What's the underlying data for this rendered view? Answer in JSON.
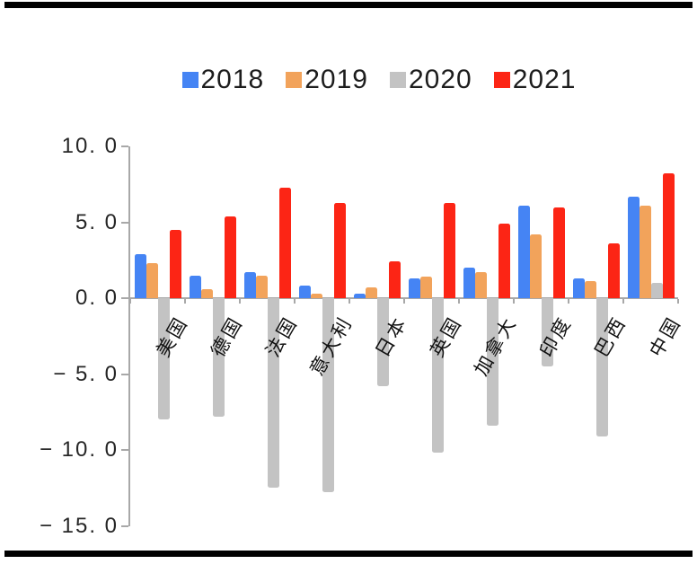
{
  "decor": {
    "border_color": "#000000",
    "background_color": "#ffffff",
    "axis_color": "#a8a8a8",
    "text_color": "#262626"
  },
  "legend": {
    "items": [
      {
        "label": "2018",
        "color": "#4584F4"
      },
      {
        "label": "2019",
        "color": "#F2A35B"
      },
      {
        "label": "2020",
        "color": "#C3C3C3"
      },
      {
        "label": "2021",
        "color": "#FC2515"
      }
    ]
  },
  "chart_data": {
    "type": "bar",
    "title": "",
    "xlabel": "",
    "ylabel": "",
    "categories": [
      "美国",
      "德国",
      "法国",
      "意大利",
      "日本",
      "英国",
      "加拿大",
      "印度",
      "巴西",
      "中国"
    ],
    "series": [
      {
        "name": "2018",
        "color": "#4584F4",
        "values": [
          2.9,
          1.5,
          1.7,
          0.8,
          0.3,
          1.3,
          2.0,
          6.1,
          1.3,
          6.7
        ]
      },
      {
        "name": "2019",
        "color": "#F2A35B",
        "values": [
          2.3,
          0.6,
          1.5,
          0.3,
          0.7,
          1.4,
          1.7,
          4.2,
          1.1,
          6.1
        ]
      },
      {
        "name": "2020",
        "color": "#C3C3C3",
        "values": [
          -8.0,
          -7.8,
          -12.5,
          -12.8,
          -5.8,
          -10.2,
          -8.4,
          -4.5,
          -9.1,
          1.0
        ]
      },
      {
        "name": "2021",
        "color": "#FC2515",
        "values": [
          4.5,
          5.4,
          7.3,
          6.3,
          2.4,
          6.3,
          4.9,
          6.0,
          3.6,
          8.2
        ]
      }
    ],
    "ylim": [
      -15.0,
      10.0
    ],
    "ytick_values": [
      10,
      5,
      0,
      -5,
      -10,
      -15
    ],
    "ytick_labels": [
      "10. 0",
      "5. 0",
      "0. 0",
      "− 5. 0",
      "− 10. 0",
      "− 15. 0"
    ],
    "grid": false,
    "legend_position": "top",
    "category_label_rotation_deg": -60
  }
}
